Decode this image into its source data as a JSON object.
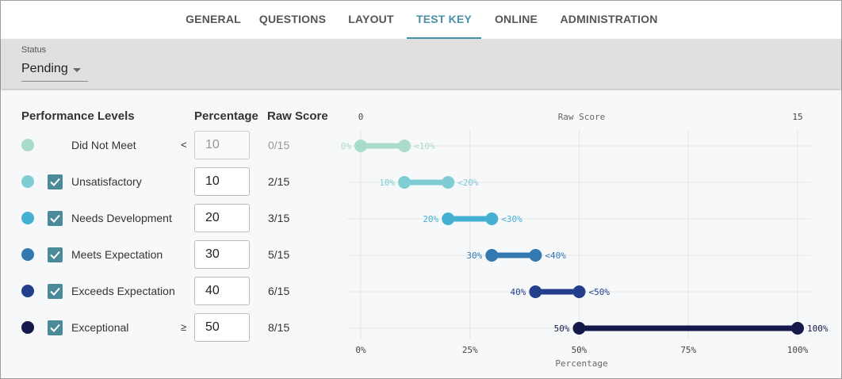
{
  "tabs": [
    {
      "label": "GENERAL",
      "active": false
    },
    {
      "label": "QUESTIONS",
      "active": false
    },
    {
      "label": "LAYOUT",
      "active": false
    },
    {
      "label": "TEST KEY",
      "active": true
    },
    {
      "label": "ONLINE",
      "active": false
    },
    {
      "label": "ADMINISTRATION",
      "active": false
    }
  ],
  "status": {
    "label": "Status",
    "value": "Pending"
  },
  "columns": {
    "levels": "Performance Levels",
    "percentage": "Percentage",
    "raw_score": "Raw Score"
  },
  "levels": [
    {
      "name": "Did Not Meet",
      "checkbox": false,
      "comparator": "<",
      "percentage": "10",
      "percentage_disabled": true,
      "raw_score": "0/15",
      "color": "#a9dbcd"
    },
    {
      "name": "Unsatisfactory",
      "checkbox": true,
      "comparator": "",
      "percentage": "10",
      "percentage_disabled": false,
      "raw_score": "2/15",
      "color": "#7fccd2"
    },
    {
      "name": "Needs Development",
      "checkbox": true,
      "comparator": "",
      "percentage": "20",
      "percentage_disabled": false,
      "raw_score": "3/15",
      "color": "#45b0d2"
    },
    {
      "name": "Meets Expectation",
      "checkbox": true,
      "comparator": "",
      "percentage": "30",
      "percentage_disabled": false,
      "raw_score": "5/15",
      "color": "#3478b0"
    },
    {
      "name": "Exceeds Expectation",
      "checkbox": true,
      "comparator": "",
      "percentage": "40",
      "percentage_disabled": false,
      "raw_score": "6/15",
      "color": "#233e8a"
    },
    {
      "name": "Exceptional",
      "checkbox": true,
      "comparator": "≥",
      "percentage": "50",
      "percentage_disabled": false,
      "raw_score": "8/15",
      "color": "#15194a"
    }
  ],
  "chart_data": {
    "type": "range",
    "top_axis": {
      "label": "Raw Score",
      "min_label": "0",
      "max_label": "15"
    },
    "bottom_axis": {
      "label": "Percentage",
      "ticks": [
        "0%",
        "25%",
        "50%",
        "75%",
        "100%"
      ],
      "range": [
        0,
        100
      ]
    },
    "ranges": [
      {
        "start": 0,
        "end": 10,
        "start_label": "0%",
        "end_label": "<10%",
        "color": "#a9dbcd"
      },
      {
        "start": 10,
        "end": 20,
        "start_label": "10%",
        "end_label": "<20%",
        "color": "#7fccd2"
      },
      {
        "start": 20,
        "end": 30,
        "start_label": "20%",
        "end_label": "<30%",
        "color": "#45b0d2"
      },
      {
        "start": 30,
        "end": 40,
        "start_label": "30%",
        "end_label": "<40%",
        "color": "#3478b0"
      },
      {
        "start": 40,
        "end": 50,
        "start_label": "40%",
        "end_label": "<50%",
        "color": "#233e8a"
      },
      {
        "start": 50,
        "end": 100,
        "start_label": "50%",
        "end_label": "100%",
        "color": "#15194a"
      }
    ]
  }
}
